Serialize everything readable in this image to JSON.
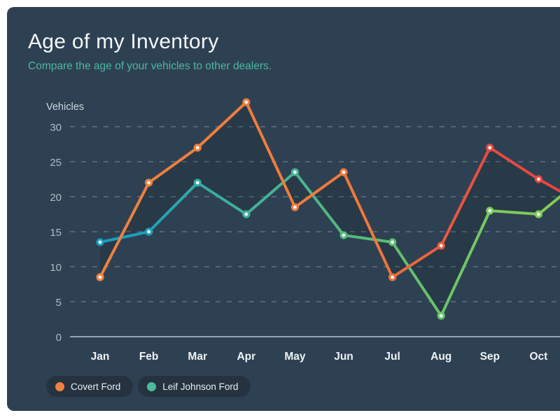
{
  "window": {
    "page_background": "#ffffff"
  },
  "card": {
    "background": "#2e4153",
    "title": "Age of my Inventory",
    "title_color": "#f3f7f8",
    "subtitle": "Compare the age of your vehicles to other dealers.",
    "subtitle_color": "#4db6a0"
  },
  "chart_data": {
    "type": "line",
    "title": "Age of my Inventory",
    "subtitle": "Compare the age of your vehicles to other dealers.",
    "ylabel": "Vehicles",
    "xlabel": "",
    "categories": [
      "Jan",
      "Feb",
      "Mar",
      "Apr",
      "May",
      "Jun",
      "Jul",
      "Aug",
      "Sep",
      "Oct"
    ],
    "y_ticks": [
      0,
      5,
      10,
      15,
      20,
      25,
      30
    ],
    "ylim": [
      0,
      34
    ],
    "grid": {
      "horizontal": "dashed",
      "zero_line": "solid",
      "dash_color": "rgba(173,196,214,0.38)",
      "zero_color": "rgba(183,197,209,0.75)"
    },
    "axis_text_color": "#aebbc6",
    "month_text_color": "#eef3f5",
    "ylabel_color": "#ccd6dc",
    "band_fill": "rgba(0,0,0,0.12)",
    "legend_position": "bottom-left",
    "series": [
      {
        "name": "Covert Ford",
        "values": [
          8.5,
          22,
          27,
          33.5,
          18.5,
          23.5,
          8.5,
          13,
          27,
          22.5
        ],
        "edge_value": 20.8,
        "legend_dot_color": "#f0813f",
        "gradient": [
          {
            "offset": 0,
            "color": "#f0823e"
          },
          {
            "offset": 0.6,
            "color": "#f0783b"
          },
          {
            "offset": 0.74,
            "color": "#ec5a40"
          },
          {
            "offset": 0.85,
            "color": "#e84b41"
          },
          {
            "offset": 1,
            "color": "#e8463e"
          }
        ]
      },
      {
        "name": "Leif Johnson Ford",
        "values": [
          13.5,
          15,
          22,
          17.5,
          23.5,
          14.5,
          13.5,
          3,
          18,
          17.5
        ],
        "edge_value": 20,
        "legend_dot_color": "#4cbb9c",
        "gradient": [
          {
            "offset": 0,
            "color": "#189cc2"
          },
          {
            "offset": 0.11,
            "color": "#1fa0b8"
          },
          {
            "offset": 0.21,
            "color": "#36aaa5"
          },
          {
            "offset": 0.32,
            "color": "#44b19c"
          },
          {
            "offset": 0.43,
            "color": "#49b491"
          },
          {
            "offset": 0.53,
            "color": "#55b97c"
          },
          {
            "offset": 0.64,
            "color": "#5ebd71"
          },
          {
            "offset": 0.75,
            "color": "#6ac469"
          },
          {
            "offset": 0.86,
            "color": "#7bc95e"
          },
          {
            "offset": 1,
            "color": "#83cb57"
          }
        ]
      }
    ]
  },
  "legend": {
    "pill_background": "#253240",
    "text_color": "#e9eef2",
    "items": [
      {
        "label": "Covert Ford",
        "color": "#f0813f"
      },
      {
        "label": "Leif Johnson Ford",
        "color": "#4cbb9c"
      }
    ]
  }
}
